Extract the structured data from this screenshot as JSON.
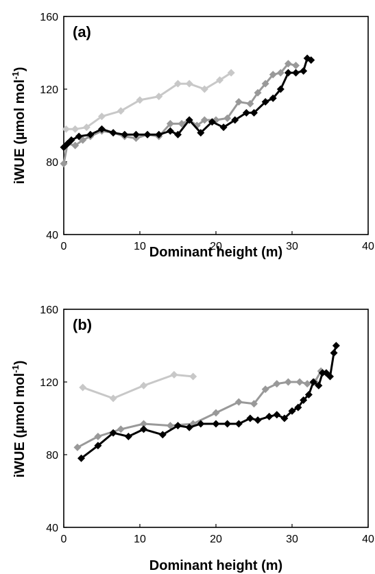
{
  "chart_data": [
    {
      "type": "line",
      "panel_label": "(a)",
      "xlabel": "Dominant height (m)",
      "ylabel_prefix": "iWUE (µmol mol",
      "ylabel_sup": "-1",
      "ylabel_suffix": ")",
      "xlim": [
        0,
        40
      ],
      "ylim": [
        40,
        160
      ],
      "xticks": [
        0,
        10,
        20,
        30,
        40
      ],
      "yticks": [
        40,
        80,
        120,
        160
      ],
      "grid": false,
      "series": [
        {
          "color": "#c8c8c8",
          "x": [
            0.3,
            1.5,
            3.0,
            5.0,
            7.5,
            10.0,
            12.5,
            15.0,
            16.5,
            18.5,
            20.5,
            22.0
          ],
          "y": [
            98,
            98,
            99,
            105,
            108,
            114,
            116,
            123,
            123,
            120,
            125,
            129
          ]
        },
        {
          "color": "#999999",
          "x": [
            0.0,
            0.5,
            1.5,
            2.5,
            3.5,
            5.0,
            6.5,
            8.0,
            9.5,
            11.0,
            12.5,
            14.0,
            15.5,
            16.5,
            17.5,
            18.5,
            20.0,
            21.5,
            23.0,
            24.5,
            25.5,
            26.5,
            27.5,
            28.5,
            29.5,
            30.5
          ],
          "y": [
            79,
            90,
            89,
            92,
            94,
            97,
            96,
            94,
            93,
            95,
            94,
            101,
            101,
            103,
            100,
            103,
            103,
            104,
            113,
            112,
            118,
            123,
            128,
            129,
            134,
            133
          ]
        },
        {
          "color": "#000000",
          "x": [
            0.0,
            0.5,
            1.0,
            2.0,
            3.5,
            5.0,
            6.5,
            8.0,
            9.5,
            11.0,
            12.5,
            14.0,
            15.0,
            16.5,
            18.0,
            19.5,
            21.0,
            22.5,
            24.0,
            25.0,
            26.5,
            27.5,
            28.5,
            29.5,
            30.5,
            31.5,
            32.0,
            32.5
          ],
          "y": [
            88,
            90,
            92,
            94,
            95,
            98,
            96,
            95,
            95,
            95,
            95,
            97,
            95,
            103,
            96,
            102,
            99,
            103,
            107,
            107,
            113,
            115,
            120,
            129,
            129,
            130,
            137,
            136
          ]
        }
      ]
    },
    {
      "type": "line",
      "panel_label": "(b)",
      "xlabel": "Dominant height (m)",
      "ylabel_prefix": "iWUE (µmol mol",
      "ylabel_sup": "-1",
      "ylabel_suffix": ")",
      "xlim": [
        0,
        40
      ],
      "ylim": [
        40,
        160
      ],
      "xticks": [
        0,
        10,
        20,
        30,
        40
      ],
      "yticks": [
        40,
        80,
        120,
        160
      ],
      "grid": false,
      "series": [
        {
          "color": "#c8c8c8",
          "x": [
            2.5,
            6.5,
            10.5,
            14.5,
            17.0
          ],
          "y": [
            117,
            111,
            118,
            124,
            123
          ]
        },
        {
          "color": "#999999",
          "x": [
            1.8,
            4.5,
            7.5,
            10.5,
            14.0,
            17.0,
            20.0,
            23.0,
            25.0,
            26.5,
            28.0,
            29.5,
            31.0,
            32.0,
            33.0,
            33.8
          ],
          "y": [
            84,
            90,
            94,
            97,
            96,
            97,
            103,
            109,
            108,
            116,
            119,
            120,
            120,
            119,
            120,
            126
          ]
        },
        {
          "color": "#000000",
          "x": [
            2.3,
            4.5,
            6.5,
            8.5,
            10.5,
            13.0,
            15.0,
            16.5,
            18.0,
            20.0,
            21.5,
            23.0,
            24.5,
            25.5,
            27.0,
            28.0,
            29.0,
            30.0,
            30.8,
            31.5,
            32.2,
            32.8,
            33.5,
            34.0,
            34.5,
            35.0,
            35.5,
            35.8
          ],
          "y": [
            78,
            85,
            92,
            90,
            94,
            91,
            96,
            95,
            97,
            97,
            97,
            97,
            100,
            99,
            101,
            102,
            100,
            104,
            106,
            110,
            113,
            120,
            118,
            125,
            125,
            123,
            136,
            140
          ]
        }
      ]
    }
  ]
}
